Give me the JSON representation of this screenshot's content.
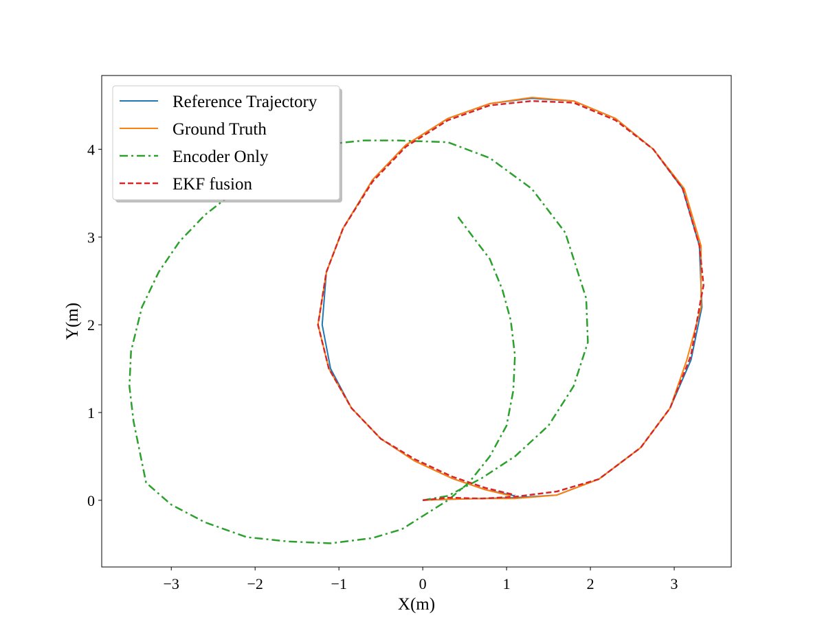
{
  "chart_data": {
    "type": "line",
    "title": "",
    "xlabel": "X(m)",
    "ylabel": "Y(m)",
    "xlim": [
      -3.83,
      3.68
    ],
    "ylim": [
      -0.76,
      4.84
    ],
    "xticks": [
      -3,
      -2,
      -1,
      0,
      1,
      2,
      3
    ],
    "yticks": [
      0,
      1,
      2,
      3,
      4
    ],
    "xtick_labels": [
      "−3",
      "−2",
      "−1",
      "0",
      "1",
      "2",
      "3"
    ],
    "ytick_labels": [
      "0",
      "1",
      "2",
      "3",
      "4"
    ],
    "grid": false,
    "legend_position": "upper-left",
    "series": [
      {
        "name": "Reference Trajectory",
        "color": "#1f77b4",
        "style": "solid",
        "x": [
          0.0,
          0.3,
          0.7,
          1.1,
          1.6,
          2.1,
          2.6,
          2.95,
          3.2,
          3.33,
          3.3,
          3.1,
          2.75,
          2.3,
          1.8,
          1.3,
          0.8,
          0.3,
          -0.2,
          -0.6,
          -0.95,
          -1.15,
          -1.2,
          -1.1,
          -0.85,
          -0.5,
          -0.1,
          0.35,
          0.75,
          1.1
        ],
        "y": [
          0.0,
          0.01,
          0.02,
          0.03,
          0.06,
          0.24,
          0.6,
          1.05,
          1.6,
          2.2,
          2.9,
          3.55,
          4.0,
          4.35,
          4.55,
          4.58,
          4.52,
          4.35,
          4.05,
          3.65,
          3.1,
          2.6,
          2.0,
          1.5,
          1.05,
          0.7,
          0.45,
          0.25,
          0.12,
          0.05
        ]
      },
      {
        "name": "Ground Truth",
        "color": "#ff7f0e",
        "style": "solid",
        "x": [
          0.0,
          0.25,
          0.7,
          1.1,
          1.6,
          2.1,
          2.6,
          2.95,
          3.15,
          3.32,
          3.32,
          3.12,
          2.75,
          2.3,
          1.8,
          1.3,
          0.8,
          0.3,
          -0.2,
          -0.6,
          -0.95,
          -1.15,
          -1.25,
          -1.12,
          -0.85,
          -0.5,
          -0.1,
          0.35,
          0.75,
          1.05
        ],
        "y": [
          0.0,
          0.01,
          0.02,
          0.02,
          0.06,
          0.24,
          0.6,
          1.05,
          1.6,
          2.2,
          2.9,
          3.55,
          4.0,
          4.35,
          4.55,
          4.59,
          4.52,
          4.35,
          4.05,
          3.65,
          3.1,
          2.6,
          2.0,
          1.5,
          1.05,
          0.7,
          0.45,
          0.25,
          0.12,
          0.05
        ]
      },
      {
        "name": "Encoder Only",
        "color": "#2ca02c",
        "style": "dashdot",
        "x": [
          0.0,
          0.3,
          0.7,
          1.1,
          1.5,
          1.8,
          1.97,
          1.95,
          1.7,
          1.3,
          0.8,
          0.3,
          -0.3,
          -0.7,
          -1.2,
          -1.7,
          -2.2,
          -2.6,
          -2.9,
          -3.15,
          -3.35,
          -3.48,
          -3.5,
          -3.45,
          -3.3,
          -3.0,
          -2.6,
          -2.1,
          -1.6,
          -1.1,
          -0.6,
          -0.25,
          0.05,
          0.3,
          0.55,
          0.8,
          1.0,
          1.08,
          1.1,
          1.05,
          0.95,
          0.8,
          0.6,
          0.42
        ],
        "y": [
          0.0,
          0.05,
          0.25,
          0.5,
          0.85,
          1.3,
          1.8,
          2.3,
          3.05,
          3.55,
          3.9,
          4.08,
          4.1,
          4.1,
          4.05,
          3.82,
          3.55,
          3.25,
          2.95,
          2.6,
          2.2,
          1.7,
          1.3,
          0.9,
          0.2,
          -0.05,
          -0.25,
          -0.42,
          -0.47,
          -0.49,
          -0.43,
          -0.33,
          -0.15,
          0.0,
          0.2,
          0.5,
          0.85,
          1.25,
          1.65,
          2.05,
          2.4,
          2.75,
          3.0,
          3.23
        ]
      },
      {
        "name": "EKF fusion",
        "color": "#d62728",
        "style": "dashed",
        "x": [
          0.0,
          0.3,
          0.7,
          1.1,
          1.6,
          2.1,
          2.6,
          2.95,
          3.2,
          3.3,
          3.35,
          3.3,
          3.1,
          2.75,
          2.3,
          1.8,
          1.3,
          0.8,
          0.3,
          -0.2,
          -0.6,
          -0.95,
          -1.15,
          -1.25,
          -1.12,
          -0.85,
          -0.5,
          -0.1,
          0.35,
          0.75,
          1.1
        ],
        "y": [
          0.0,
          0.03,
          0.02,
          0.04,
          0.1,
          0.24,
          0.6,
          1.05,
          1.65,
          2.2,
          2.45,
          2.9,
          3.55,
          4.0,
          4.33,
          4.53,
          4.55,
          4.5,
          4.33,
          4.03,
          3.63,
          3.1,
          2.6,
          2.0,
          1.5,
          1.05,
          0.7,
          0.47,
          0.27,
          0.14,
          0.06
        ]
      }
    ]
  }
}
